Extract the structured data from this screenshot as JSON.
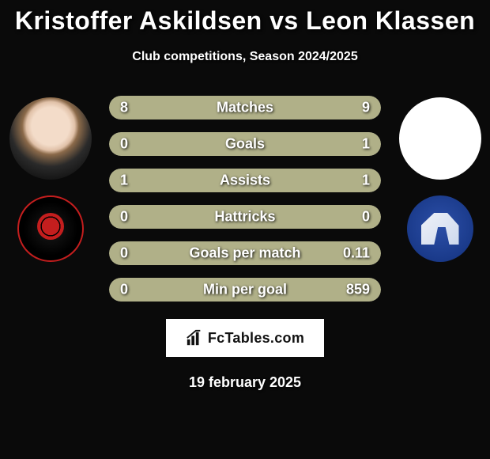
{
  "title": "Kristoffer Askildsen vs Leon Klassen",
  "subtitle": "Club competitions, Season 2024/2025",
  "date": "19 february 2025",
  "brand": {
    "text": "FcTables.com",
    "logo_color": "#111111"
  },
  "colors": {
    "background": "#0a0a0a",
    "bar_bg": "#2a2a2a",
    "bar_fill": "#b0b088",
    "text": "#ffffff",
    "title_fontsize": 32,
    "subtitle_fontsize": 16,
    "label_fontsize": 18,
    "value_fontsize": 18
  },
  "player_a": {
    "name": "Kristoffer Askildsen",
    "club": "FC Midtjylland"
  },
  "player_b": {
    "name": "Leon Klassen",
    "club": "Lyngby BK"
  },
  "stats": [
    {
      "label": "Matches",
      "a": "8",
      "b": "9",
      "a_pct": 47,
      "b_pct": 53
    },
    {
      "label": "Goals",
      "a": "0",
      "b": "1",
      "a_pct": 18,
      "b_pct": 82
    },
    {
      "label": "Assists",
      "a": "1",
      "b": "1",
      "a_pct": 50,
      "b_pct": 50
    },
    {
      "label": "Hattricks",
      "a": "0",
      "b": "0",
      "a_pct": 50,
      "b_pct": 50
    },
    {
      "label": "Goals per match",
      "a": "0",
      "b": "0.11",
      "a_pct": 18,
      "b_pct": 82
    },
    {
      "label": "Min per goal",
      "a": "0",
      "b": "859",
      "a_pct": 18,
      "b_pct": 82
    }
  ]
}
